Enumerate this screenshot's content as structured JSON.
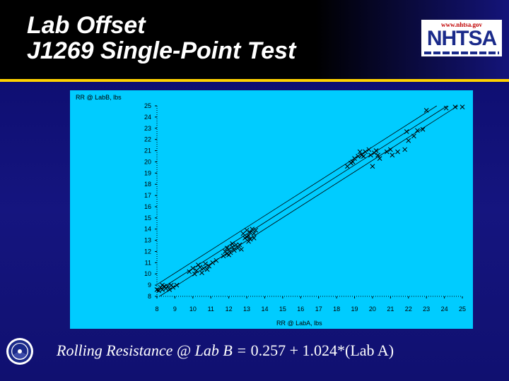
{
  "slide": {
    "title_line1": "Lab Offset",
    "title_line2": "J1269 Single-Point Test",
    "logo_url": "www.nhtsa.gov",
    "logo_name": "NHTSA",
    "equation_lhs": "Rolling Resistance @ Lab B =",
    "equation_rhs": " 0.257 + 1.024*(Lab A)"
  },
  "colors": {
    "background": "#101078",
    "accent_rule": "#ffd200",
    "plot_background": "#00ccff",
    "marker": "#000000"
  },
  "chart_data": {
    "type": "scatter",
    "title": "",
    "xlabel": "RR @ LabA, lbs",
    "ylabel": "RR @ LabB, lbs",
    "xlim": [
      8,
      25
    ],
    "ylim": [
      8,
      25
    ],
    "xticks": [
      8,
      9,
      10,
      11,
      12,
      13,
      14,
      15,
      16,
      17,
      18,
      19,
      20,
      21,
      22,
      23,
      24,
      25
    ],
    "yticks": [
      8,
      9,
      10,
      11,
      12,
      13,
      14,
      15,
      16,
      17,
      18,
      19,
      20,
      21,
      22,
      23,
      24,
      25
    ],
    "grid": false,
    "marker": "x",
    "regression": {
      "intercept": 0.257,
      "slope": 1.024
    },
    "band_offset": 0.6,
    "points": [
      [
        8.0,
        8.6
      ],
      [
        8.1,
        8.5
      ],
      [
        8.2,
        8.8
      ],
      [
        8.3,
        8.6
      ],
      [
        8.4,
        8.9
      ],
      [
        8.5,
        8.7
      ],
      [
        8.6,
        8.9
      ],
      [
        8.8,
        9.0
      ],
      [
        8.9,
        8.8
      ],
      [
        8.3,
        9.0
      ],
      [
        8.7,
        8.6
      ],
      [
        9.1,
        9.0
      ],
      [
        9.8,
        10.2
      ],
      [
        10.0,
        10.5
      ],
      [
        10.2,
        10.3
      ],
      [
        10.4,
        10.6
      ],
      [
        10.5,
        10.1
      ],
      [
        10.6,
        10.5
      ],
      [
        10.7,
        10.9
      ],
      [
        10.8,
        10.4
      ],
      [
        10.3,
        10.8
      ],
      [
        10.9,
        10.7
      ],
      [
        10.1,
        10.0
      ],
      [
        11.1,
        11.0
      ],
      [
        11.3,
        11.2
      ],
      [
        11.7,
        11.6
      ],
      [
        11.8,
        12.0
      ],
      [
        11.9,
        11.8
      ],
      [
        12.0,
        12.2
      ],
      [
        12.1,
        11.9
      ],
      [
        12.2,
        12.4
      ],
      [
        12.3,
        12.1
      ],
      [
        12.4,
        12.6
      ],
      [
        12.5,
        12.3
      ],
      [
        12.6,
        12.6
      ],
      [
        12.7,
        12.2
      ],
      [
        11.9,
        12.3
      ],
      [
        12.2,
        12.7
      ],
      [
        12.0,
        11.7
      ],
      [
        12.8,
        13.6
      ],
      [
        12.9,
        13.2
      ],
      [
        13.0,
        13.9
      ],
      [
        13.1,
        13.4
      ],
      [
        13.2,
        13.7
      ],
      [
        13.3,
        14.0
      ],
      [
        13.4,
        13.6
      ],
      [
        13.5,
        13.9
      ],
      [
        13.2,
        13.1
      ],
      [
        13.0,
        13.3
      ],
      [
        13.4,
        13.2
      ],
      [
        13.1,
        12.9
      ],
      [
        18.6,
        19.6
      ],
      [
        18.8,
        19.9
      ],
      [
        18.9,
        20.0
      ],
      [
        19.0,
        20.3
      ],
      [
        19.2,
        20.5
      ],
      [
        19.4,
        20.6
      ],
      [
        19.6,
        20.9
      ],
      [
        19.8,
        21.1
      ],
      [
        19.3,
        20.9
      ],
      [
        19.5,
        20.5
      ],
      [
        19.9,
        20.6
      ],
      [
        20.1,
        20.8
      ],
      [
        20.2,
        21.0
      ],
      [
        20.3,
        20.6
      ],
      [
        20.4,
        20.3
      ],
      [
        20.0,
        19.6
      ],
      [
        20.8,
        20.9
      ],
      [
        21.0,
        21.1
      ],
      [
        21.1,
        20.6
      ],
      [
        21.4,
        20.9
      ],
      [
        21.8,
        21.1
      ],
      [
        22.0,
        21.9
      ],
      [
        22.3,
        22.3
      ],
      [
        22.5,
        22.8
      ],
      [
        22.8,
        22.9
      ],
      [
        21.9,
        22.7
      ],
      [
        23.0,
        24.6
      ],
      [
        24.1,
        24.8
      ],
      [
        24.6,
        24.9
      ],
      [
        25.0,
        24.9
      ]
    ]
  }
}
